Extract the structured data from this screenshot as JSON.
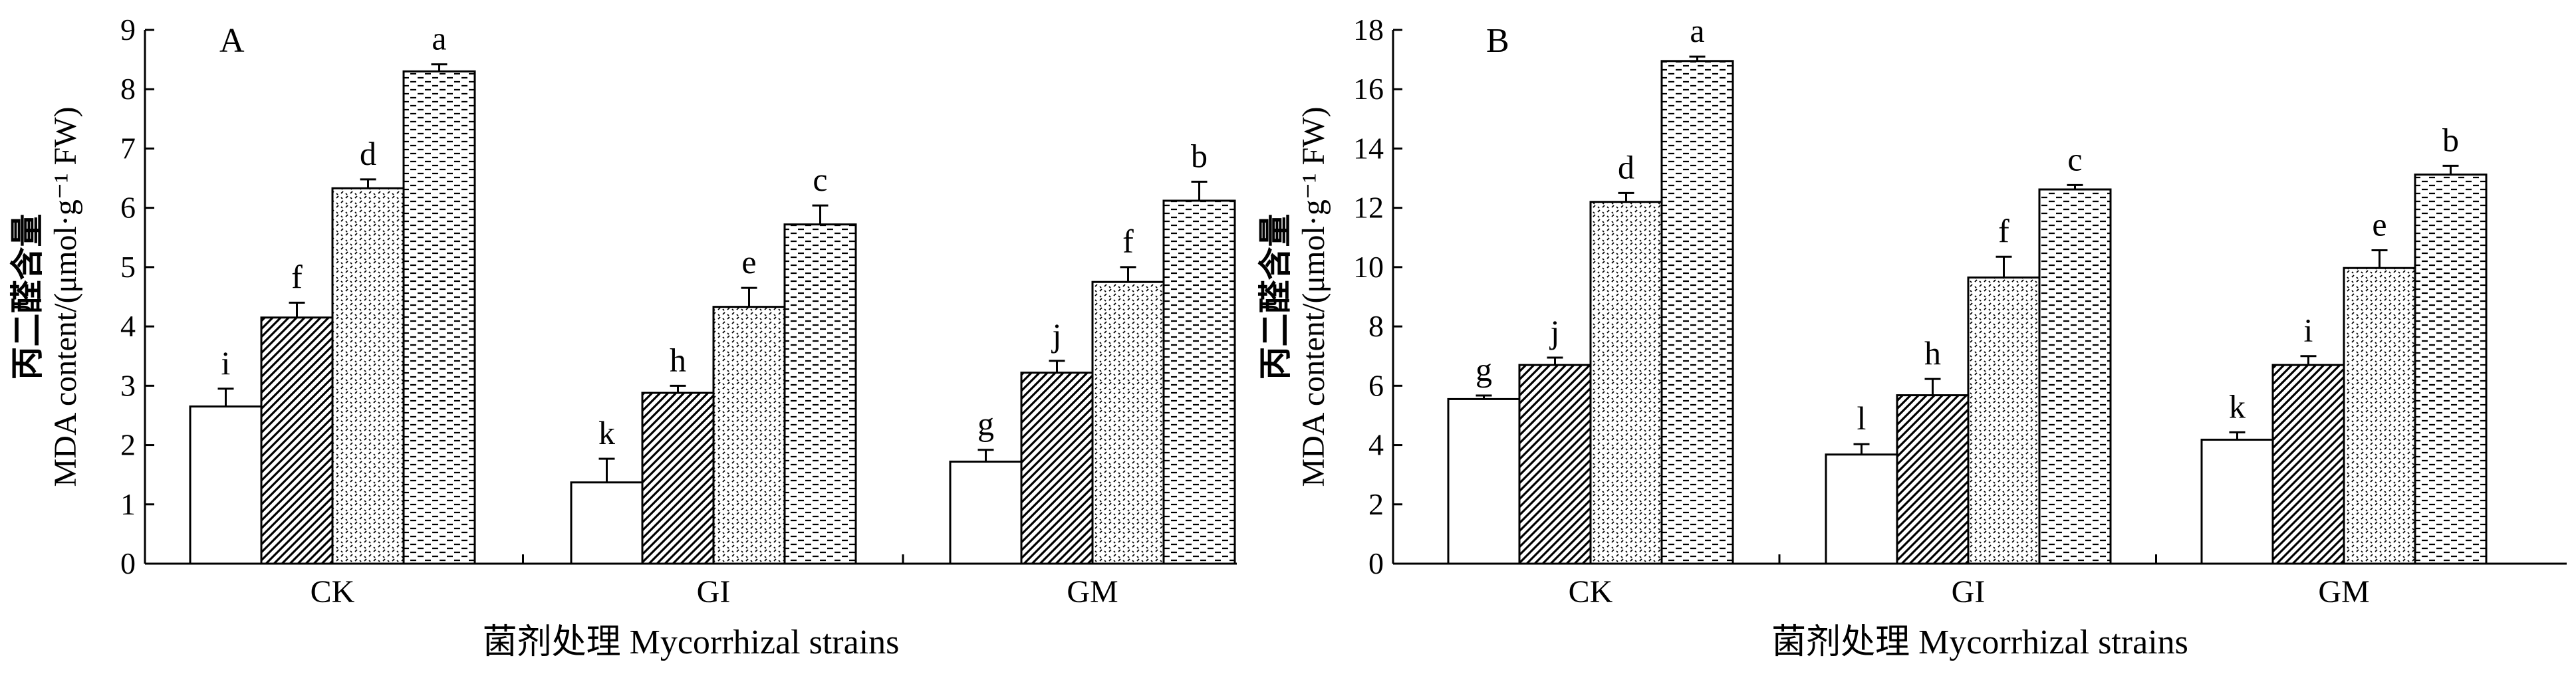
{
  "chart_data": [
    {
      "type": "bar",
      "panel_label": "A",
      "categories": [
        "CK",
        "GI",
        "GM"
      ],
      "ylim": [
        0,
        9
      ],
      "yticks": [
        0,
        1,
        2,
        3,
        4,
        5,
        6,
        7,
        8,
        9
      ],
      "ylabel_cn": "丙二醛含量",
      "ylabel_en": "MDA content/(μmol·g⁻¹ FW)",
      "xlabel": "菌剂处理 Mycorrhizal strains",
      "series": [
        {
          "values": [
            2.65,
            1.37,
            1.72
          ],
          "errors": [
            0.3,
            0.4,
            0.2
          ],
          "letters": [
            "i",
            "k",
            "g"
          ]
        },
        {
          "values": [
            4.15,
            2.88,
            3.22
          ],
          "errors": [
            0.25,
            0.12,
            0.2
          ],
          "letters": [
            "f",
            "h",
            "j"
          ]
        },
        {
          "values": [
            6.33,
            4.33,
            4.75
          ],
          "errors": [
            0.15,
            0.32,
            0.25
          ],
          "letters": [
            "d",
            "e",
            "f"
          ]
        },
        {
          "values": [
            8.3,
            5.72,
            6.12
          ],
          "errors": [
            0.12,
            0.32,
            0.32
          ],
          "letters": [
            "a",
            "c",
            "b"
          ]
        }
      ]
    },
    {
      "type": "bar",
      "panel_label": "B",
      "categories": [
        "CK",
        "GI",
        "GM"
      ],
      "ylim": [
        0,
        18
      ],
      "yticks": [
        0,
        2,
        4,
        6,
        8,
        10,
        12,
        14,
        16,
        18
      ],
      "ylabel_cn": "丙二醛含量",
      "ylabel_en": "MDA content/(μmol·g⁻¹ FW)",
      "xlabel": "菌剂处理 Mycorrhizal strains",
      "series": [
        {
          "values": [
            5.55,
            3.68,
            4.18
          ],
          "errors": [
            0.12,
            0.35,
            0.25
          ],
          "letters": [
            "g",
            "l",
            "k"
          ]
        },
        {
          "values": [
            6.7,
            5.68,
            6.7
          ],
          "errors": [
            0.25,
            0.55,
            0.3
          ],
          "letters": [
            "j",
            "h",
            "i"
          ]
        },
        {
          "values": [
            12.2,
            9.65,
            9.97
          ],
          "errors": [
            0.3,
            0.7,
            0.6
          ],
          "letters": [
            "d",
            "f",
            "e"
          ]
        },
        {
          "values": [
            16.95,
            12.62,
            13.12
          ],
          "errors": [
            0.15,
            0.15,
            0.3
          ],
          "letters": [
            "a",
            "c",
            "b"
          ]
        }
      ]
    }
  ]
}
